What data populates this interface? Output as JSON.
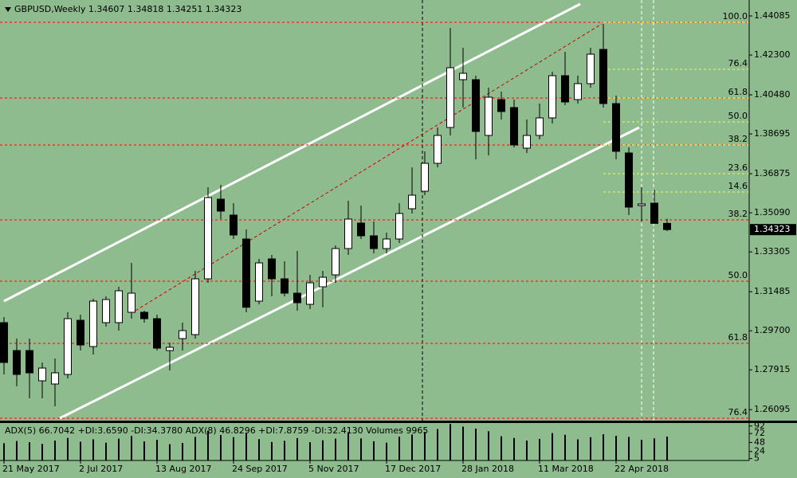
{
  "chart_data": {
    "type": "candlestick",
    "title": "GBPUSD,Weekly  1.34607 1.34818 1.34251 1.34323",
    "background": "#8fbc8f",
    "up_color": "#ffffff",
    "down_color": "#000000",
    "categories": [
      "21 May 2017",
      null,
      null,
      null,
      null,
      null,
      "2 Jul 2017",
      null,
      null,
      null,
      null,
      null,
      "13 Aug 2017",
      null,
      null,
      null,
      null,
      null,
      "24 Sep 2017",
      null,
      null,
      null,
      null,
      null,
      "5 Nov 2017",
      null,
      null,
      null,
      null,
      null,
      "17 Dec 2017",
      null,
      null,
      null,
      null,
      null,
      "28 Jan 2018",
      null,
      null,
      null,
      null,
      null,
      "11 Mar 2018",
      null,
      null,
      null,
      null,
      null,
      "22 Apr 2018",
      null,
      null,
      null,
      null
    ],
    "open": [
      1.30071,
      1.28797,
      1.28797,
      1.27414,
      1.27268,
      1.27705,
      1.3018,
      1.28979,
      1.30071,
      1.30071,
      1.30544,
      1.30544,
      1.30253,
      1.28797,
      1.29343,
      1.29525,
      1.32073,
      1.35713,
      1.34985,
      1.33893,
      1.31054,
      1.32983,
      1.32073,
      1.31418,
      1.30908,
      1.31709,
      1.32255,
      1.33456,
      1.34621,
      1.34039,
      1.33456,
      1.33893,
      1.35276,
      1.36077,
      1.37351,
      1.38989,
      1.41173,
      1.41173,
      1.38625,
      1.40263,
      1.39899,
      1.38043,
      1.38625,
      1.39426,
      1.41355,
      1.40263,
      1.40991,
      1.42556,
      1.40081,
      1.37824,
      1.35422,
      1.35531,
      1.34607
    ],
    "high": [
      1.30326,
      1.29343,
      1.29343,
      1.28251,
      1.28433,
      1.30544,
      1.30433,
      1.31163,
      1.31272,
      1.31709,
      1.32801,
      1.30617,
      1.30433,
      1.29161,
      1.30071,
      1.32437,
      1.36259,
      1.36368,
      1.35531,
      1.3433,
      1.32983,
      1.33165,
      1.32874,
      1.33347,
      1.32255,
      1.32437,
      1.33602,
      1.3564,
      1.35422,
      1.34694,
      1.34184,
      1.35531,
      1.37169,
      1.37897,
      1.38989,
      1.43539,
      1.42629,
      1.41355,
      1.40809,
      1.40627,
      1.40263,
      1.39353,
      1.40081,
      1.41537,
      1.42447,
      1.41355,
      1.42629,
      1.43721,
      1.40445,
      1.38079,
      1.36259,
      1.3615,
      1.34818
    ],
    "low": [
      1.27705,
      1.27159,
      1.26613,
      1.26613,
      1.26249,
      1.27523,
      1.28797,
      1.28613,
      1.29889,
      1.29707,
      1.30253,
      1.30071,
      1.28797,
      1.27887,
      1.28797,
      1.29343,
      1.31891,
      1.34803,
      1.33893,
      1.30544,
      1.30908,
      1.31272,
      1.31272,
      1.30617,
      1.3069,
      1.30773,
      1.31891,
      1.33165,
      1.33893,
      1.33238,
      1.33238,
      1.33713,
      1.35058,
      1.35895,
      1.37169,
      1.38625,
      1.39899,
      1.37533,
      1.37715,
      1.39353,
      1.38079,
      1.37824,
      1.38443,
      1.39171,
      1.40008,
      1.40081,
      1.40809,
      1.39899,
      1.37533,
      1.34985,
      1.34694,
      1.34621,
      1.34251
    ],
    "close": [
      1.28251,
      1.27705,
      1.27778,
      1.27996,
      1.27778,
      1.30253,
      1.29052,
      1.31054,
      1.31127,
      1.31527,
      1.31418,
      1.30253,
      1.28906,
      1.28943,
      1.29707,
      1.32073,
      1.35786,
      1.35167,
      1.34075,
      1.30773,
      1.32801,
      1.32073,
      1.31418,
      1.30981,
      1.31891,
      1.32146,
      1.33456,
      1.34803,
      1.34039,
      1.33456,
      1.33893,
      1.35058,
      1.35895,
      1.37351,
      1.38625,
      1.41719,
      1.41464,
      1.38807,
      1.40372,
      1.39717,
      1.38188,
      1.38625,
      1.39426,
      1.41355,
      1.40154,
      1.40991,
      1.42338,
      1.40081,
      1.37897,
      1.35349,
      1.35495,
      1.34607,
      1.34323
    ],
    "ylim": [
      1.25594,
      1.44813
    ],
    "yticks": [
      1.44085,
      {
        "value": 1.423,
        "label": "1.42300"
      },
      {
        "value": 1.4048,
        "label": "1.40480"
      },
      1.38695,
      1.36875,
      {
        "value": 1.3509,
        "label": "1.35090"
      },
      1.33305,
      1.31485,
      {
        "value": 1.297,
        "label": "1.29700"
      },
      1.27915,
      1.26095
    ],
    "last_price": 1.34323,
    "fib_yellow": {
      "color": "#ffff00",
      "levels": [
        {
          "value": 1.43794,
          "label": "100.0"
        },
        {
          "value": 1.41646,
          "label": "76.4"
        },
        {
          "value": 1.40336,
          "label": "61.8"
        },
        {
          "value": 1.39244,
          "label": "50.0"
        },
        {
          "value": 1.38188,
          "label": "38.2"
        },
        {
          "value": 1.36878,
          "label": "23.6"
        },
        {
          "value": 1.36041,
          "label": "14.6"
        }
      ]
    },
    "fib_red": {
      "color": "#ff0000",
      "levels": [
        {
          "value": 1.43794,
          "label": null
        },
        {
          "value": 1.40336,
          "label": null
        },
        {
          "value": 1.38188,
          "label": null
        },
        {
          "value": 1.34766,
          "label": "38.2"
        },
        {
          "value": 1.31964,
          "label": "50.0"
        },
        {
          "value": 1.29124,
          "label": "61.8"
        },
        {
          "value": 1.25703,
          "label": "76.4"
        }
      ]
    },
    "indicator_label": "ADX(5) 66.7042 +DI:3.6590 -DI:34.3780  ADX(8) 46.8296 +DI:7.8759 -DI:32.4130  Volumes 9965",
    "volumes": [
      7200,
      8100,
      7600,
      6900,
      8300,
      9400,
      7800,
      8800,
      7400,
      9100,
      10200,
      7900,
      8600,
      6800,
      7300,
      9800,
      12400,
      10600,
      9700,
      11300,
      8900,
      7700,
      8200,
      9300,
      7600,
      8400,
      9100,
      11800,
      9200,
      8000,
      7400,
      9900,
      10800,
      11900,
      13100,
      15200,
      14100,
      13300,
      12200,
      10100,
      9400,
      8300,
      9000,
      11400,
      10700,
      8800,
      9700,
      10900,
      10300,
      9800,
      8600,
      9200,
      9965
    ],
    "volume_color": "#000000",
    "pane_ylim": [
      0,
      100
    ],
    "pane_yticks": [
      92,
      72,
      48,
      24,
      5
    ]
  }
}
